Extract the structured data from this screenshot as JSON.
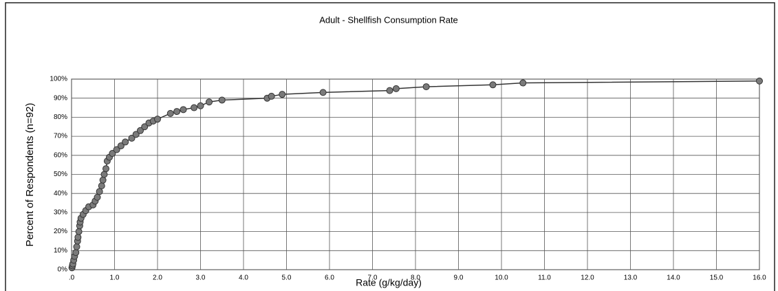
{
  "chart_data": {
    "type": "line",
    "title": "Adult - Shellfish Consumption Rate",
    "x_label": "Rate (g/kg/day)",
    "y_label": "Percent of Respondents (n=92)",
    "x": [
      0.01,
      0.02,
      0.03,
      0.05,
      0.07,
      0.1,
      0.12,
      0.14,
      0.15,
      0.17,
      0.19,
      0.2,
      0.22,
      0.27,
      0.33,
      0.4,
      0.5,
      0.55,
      0.6,
      0.65,
      0.7,
      0.73,
      0.76,
      0.8,
      0.83,
      0.88,
      0.95,
      1.05,
      1.15,
      1.25,
      1.4,
      1.5,
      1.6,
      1.7,
      1.8,
      1.9,
      2.0,
      2.3,
      2.45,
      2.6,
      2.85,
      3.0,
      3.2,
      3.5,
      4.55,
      4.65,
      4.9,
      5.85,
      7.4,
      7.55,
      8.25,
      9.8,
      10.5,
      16.0
    ],
    "values": [
      1,
      2,
      3,
      5,
      7,
      9,
      12,
      15,
      17,
      20,
      23,
      25,
      27,
      29,
      31,
      33,
      34,
      36,
      38,
      41,
      44,
      47,
      50,
      53,
      57,
      59,
      61,
      63,
      65,
      67,
      69,
      71,
      73,
      75,
      77,
      78,
      79,
      82,
      83,
      84,
      85,
      86,
      88,
      89,
      90,
      91,
      92,
      93,
      94,
      95,
      96,
      97,
      98,
      99
    ],
    "color": "#333333",
    "marker_color": "#7a7a7a",
    "xlim": [
      0,
      16
    ],
    "ylim": [
      0,
      100
    ],
    "xticks": [
      {
        "value": 0,
        "label": ".0"
      },
      {
        "value": 1,
        "label": "1.0"
      },
      {
        "value": 2,
        "label": "2.0"
      },
      {
        "value": 3,
        "label": "3.0"
      },
      {
        "value": 4,
        "label": "4.0"
      },
      {
        "value": 5,
        "label": "5.0"
      },
      {
        "value": 6,
        "label": "6.0"
      },
      {
        "value": 7,
        "label": "7.0"
      },
      {
        "value": 8,
        "label": "8.0"
      },
      {
        "value": 9,
        "label": "9.0"
      },
      {
        "value": 10,
        "label": "10.0"
      },
      {
        "value": 11,
        "label": "11.0"
      },
      {
        "value": 12,
        "label": "12.0"
      },
      {
        "value": 13,
        "label": "13.0"
      },
      {
        "value": 14,
        "label": "14.0"
      },
      {
        "value": 15,
        "label": "15.0"
      },
      {
        "value": 16,
        "label": "16.0"
      }
    ],
    "yticks": [
      {
        "value": 0,
        "label": "0%"
      },
      {
        "value": 10,
        "label": "10%"
      },
      {
        "value": 20,
        "label": "20%"
      },
      {
        "value": 30,
        "label": "30%"
      },
      {
        "value": 40,
        "label": "40%"
      },
      {
        "value": 50,
        "label": "50%"
      },
      {
        "value": 60,
        "label": "60%"
      },
      {
        "value": 70,
        "label": "70%"
      },
      {
        "value": 80,
        "label": "80%"
      },
      {
        "value": 90,
        "label": "90%"
      },
      {
        "value": 100,
        "label": "100%"
      }
    ],
    "grid": true
  }
}
